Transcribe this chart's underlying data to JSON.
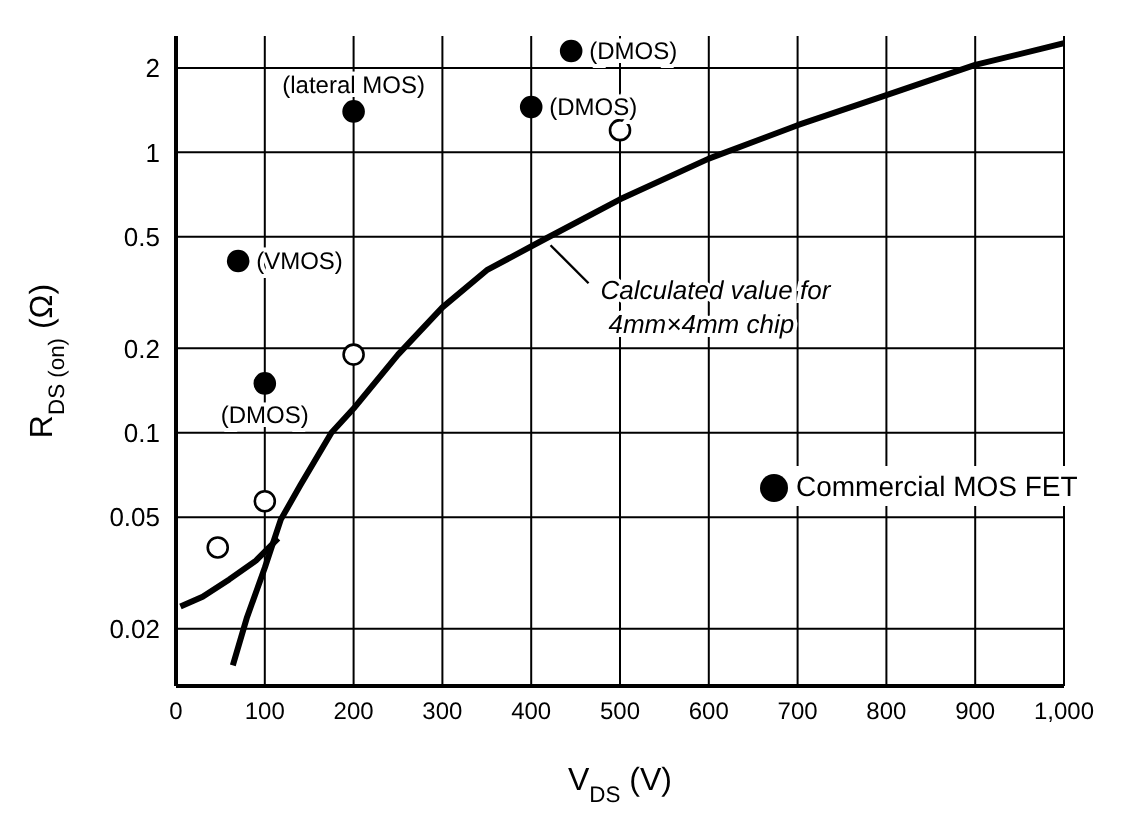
{
  "chart_data": {
    "type": "scatter",
    "xlabel": "V$_{DS}$  (V)",
    "ylabel": "R$_{DS (on)}$  (Ω)",
    "xlim": [
      0,
      1000
    ],
    "xticks": [
      0,
      100,
      200,
      300,
      400,
      500,
      600,
      700,
      800,
      900,
      {
        "value": 1000,
        "label": "1,000"
      }
    ],
    "ylim": [
      0.0125,
      2.6
    ],
    "yticks": [
      0.02,
      0.05,
      0.1,
      0.2,
      0.5,
      1,
      2
    ],
    "log": "y",
    "grid": true,
    "legend": "right",
    "marker": "circle",
    "series": [
      {
        "type": "line",
        "marker": "none",
        "color": "#000000",
        "x": [
          5,
          30,
          60,
          90,
          115
        ],
        "values": [
          0.024,
          0.026,
          0.03,
          0.035,
          0.042
        ]
      },
      {
        "type": "line",
        "marker": "none",
        "color": "#000000",
        "x": [
          64,
          80,
          100,
          118,
          140,
          175,
          200,
          250,
          300,
          350,
          415,
          500,
          600,
          700,
          800,
          900,
          1000
        ],
        "values": [
          0.0148,
          0.022,
          0.033,
          0.049,
          0.065,
          0.1,
          0.122,
          0.19,
          0.28,
          0.38,
          0.49,
          0.68,
          0.95,
          1.25,
          1.6,
          2.05,
          2.45
        ]
      },
      {
        "name": "Commercial MOS FET",
        "color": "#000000",
        "x": [
          200,
          400,
          445,
          70,
          100
        ],
        "values": [
          1.4,
          1.45,
          2.3,
          0.41,
          0.15
        ]
      },
      {
        "color": "#ffffff",
        "x": [
          500,
          200,
          100,
          47
        ],
        "values": [
          1.2,
          0.19,
          0.057,
          0.039
        ]
      }
    ],
    "annotations": [
      {
        "text": "(lateral MOS)",
        "x": 200,
        "y": 1.4
      },
      {
        "text": "(DMOS)",
        "x": 400,
        "y": 1.45
      },
      {
        "text": "(DMOS)",
        "x": 445,
        "y": 2.3
      },
      {
        "text": "(VMOS)",
        "x": 70,
        "y": 0.41
      },
      {
        "text": "(DMOS)",
        "x": 100,
        "y": 0.15
      },
      {
        "text": "Calculated value for 4mm×4mm chip",
        "x": 415,
        "y": 0.49
      }
    ]
  }
}
